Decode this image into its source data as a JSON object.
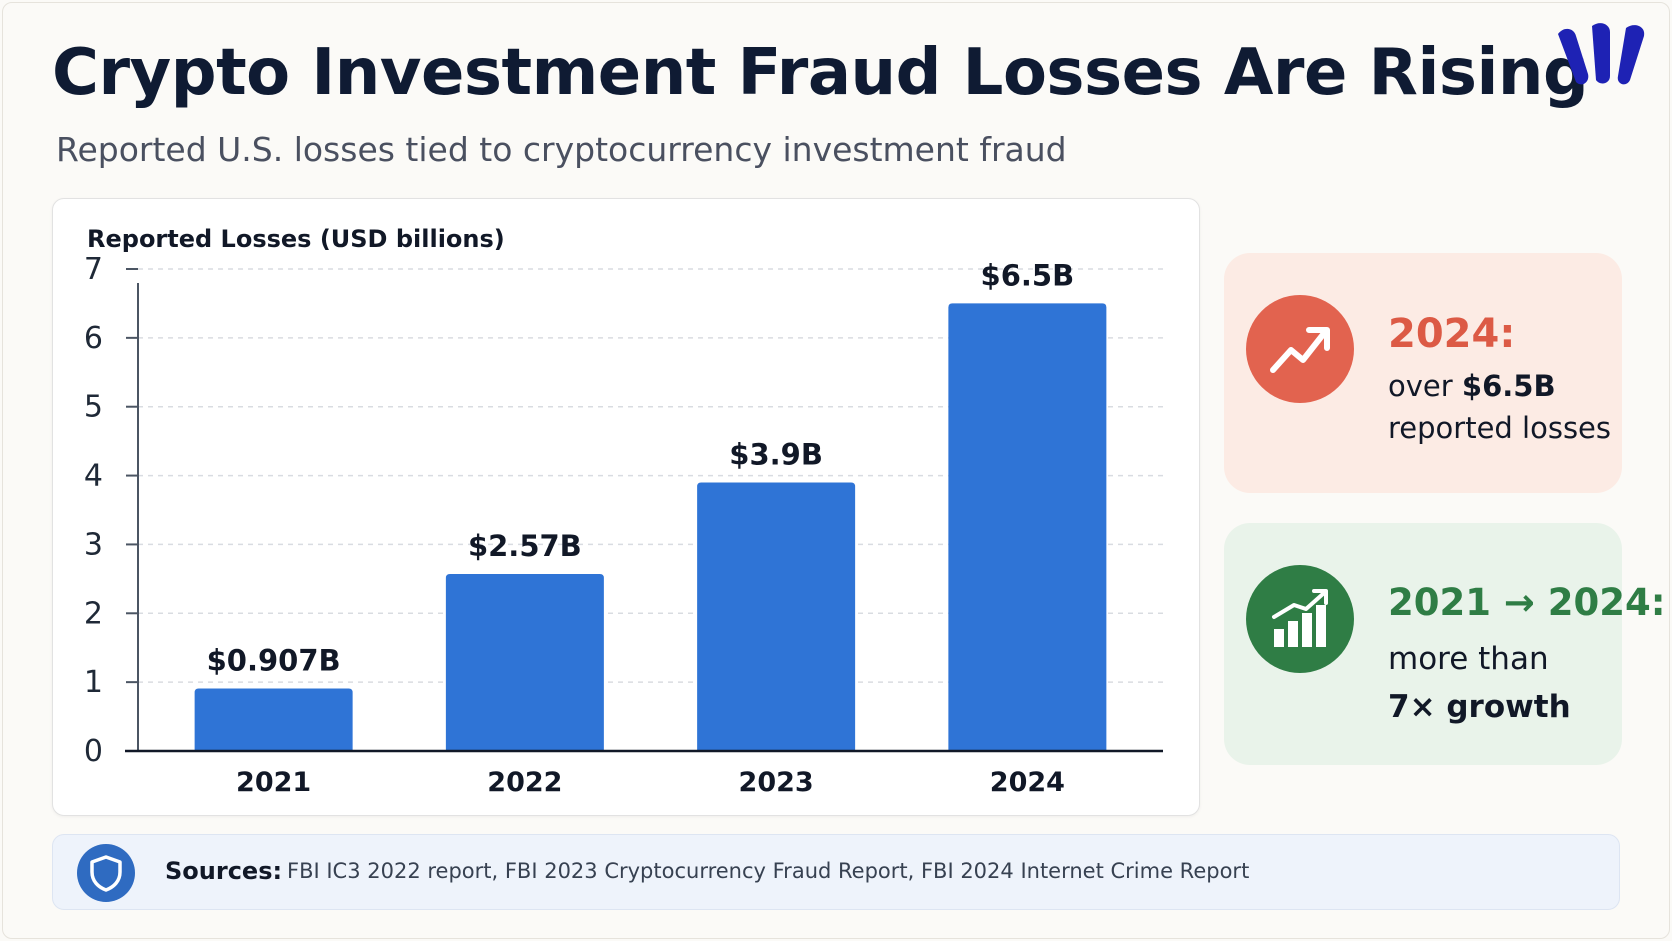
{
  "header": {
    "title": "Crypto Investment Fraud Losses Are Rising",
    "subtitle": "Reported U.S. losses tied to cryptocurrency investment fraud"
  },
  "colors": {
    "bar": "#2f74d6",
    "title": "#0f1b33",
    "stat_red": "#dc5a45",
    "stat_green": "#2f7d45",
    "logo": "#1e22b4"
  },
  "chart_data": {
    "type": "bar",
    "ylabel": "Reported Losses (USD billions)",
    "xlabel": "",
    "categories": [
      "2021",
      "2022",
      "2023",
      "2024"
    ],
    "values": [
      0.907,
      2.57,
      3.9,
      6.5
    ],
    "data_labels": [
      "$0.907B",
      "$2.57B",
      "$3.9B",
      "$6.5B"
    ],
    "ylim": [
      0,
      7
    ],
    "yticks": [
      "0",
      "1",
      "2",
      "3",
      "4",
      "5",
      "6",
      "7"
    ],
    "grid": true,
    "legend": "none"
  },
  "stats": {
    "red": {
      "icon": "trend-up-icon",
      "head": "2024:",
      "line1_prefix": "over ",
      "line1_strong": "$6.5B",
      "line2": "reported losses"
    },
    "green": {
      "icon": "bar-growth-icon",
      "head": "2021 → 2024:",
      "line1": "more than",
      "line2": "7× growth"
    }
  },
  "sources": {
    "icon": "shield-icon",
    "label": "Sources:",
    "text": "FBI IC3 2022 report, FBI 2023 Cryptocurrency Fraud Report, FBI 2024 Internet Crime Report"
  }
}
